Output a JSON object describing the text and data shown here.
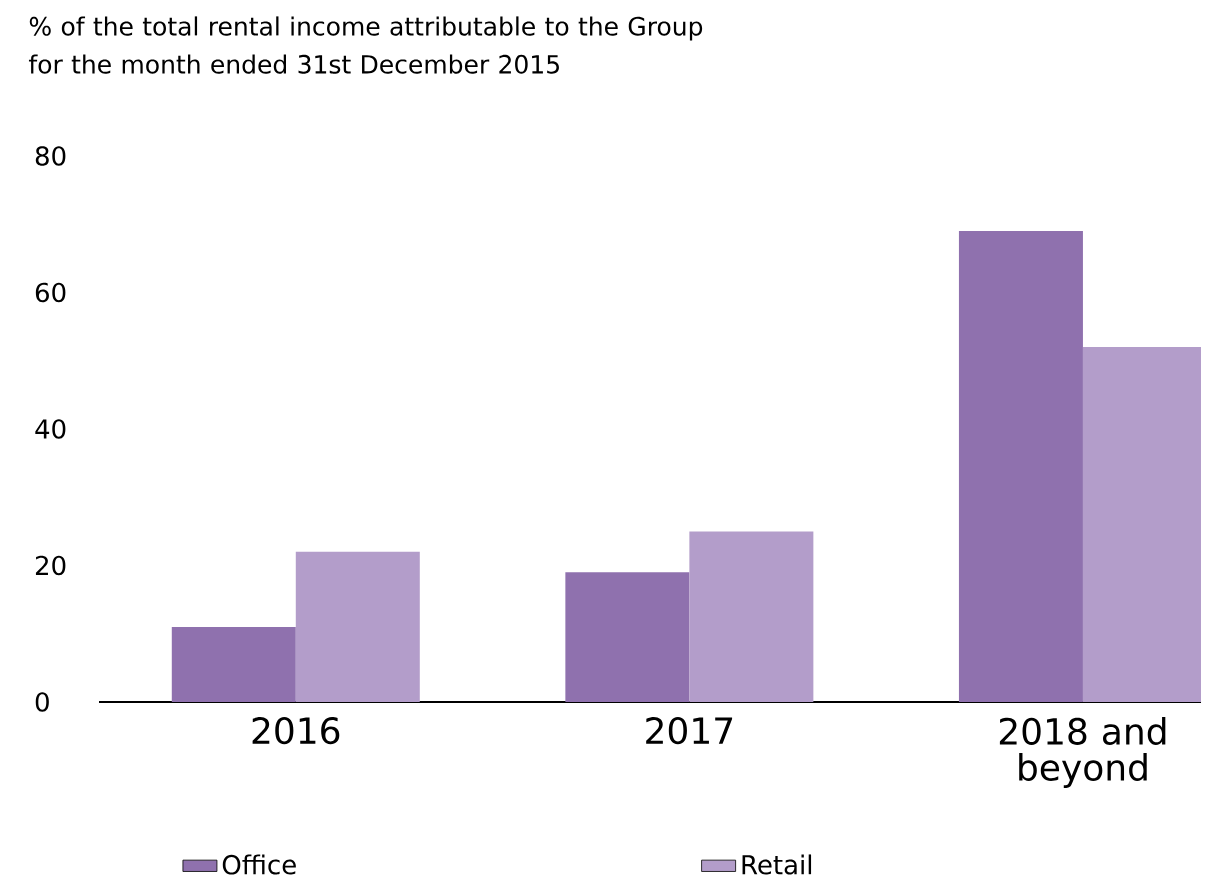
{
  "chart_data": {
    "type": "bar",
    "title": "% of the total rental income attributable to the Group for the month ended 31st December 2015",
    "categories": [
      "2016",
      "2017",
      "2018 and beyond"
    ],
    "series": [
      {
        "name": "Office",
        "color": "#8f71ae",
        "values": [
          11,
          19,
          69
        ]
      },
      {
        "name": "Retail",
        "color": "#b39dca",
        "values": [
          22,
          25,
          52
        ]
      }
    ],
    "ylim": [
      0,
      80
    ],
    "yticks": [
      0,
      20,
      40,
      60,
      80
    ],
    "legend": "bottom"
  }
}
